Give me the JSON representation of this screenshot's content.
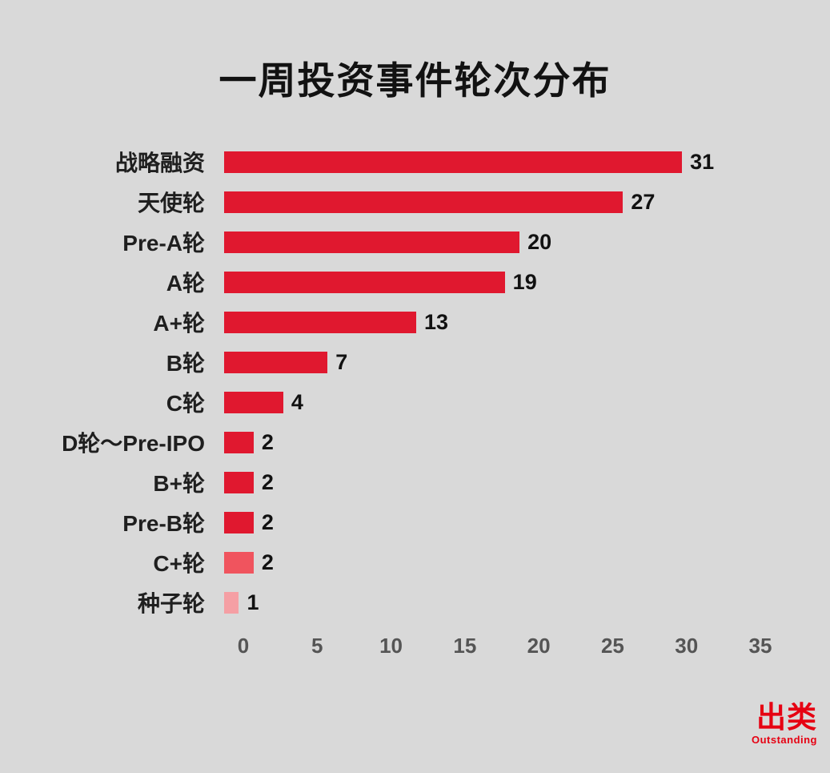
{
  "title": "一周投资事件轮次分布",
  "chart_data": {
    "type": "bar",
    "orientation": "horizontal",
    "title": "一周投资事件轮次分布",
    "categories": [
      "战略融资",
      "天使轮",
      "Pre-A轮",
      "A轮",
      "A+轮",
      "B轮",
      "C轮",
      "D轮～Pre-IPO",
      "B+轮",
      "Pre-B轮",
      "C+轮",
      "种子轮"
    ],
    "values": [
      31,
      27,
      20,
      19,
      13,
      7,
      4,
      2,
      2,
      2,
      2,
      1
    ],
    "bar_colors": [
      "#e0182f",
      "#e0182f",
      "#e0182f",
      "#e0182f",
      "#e0182f",
      "#e0182f",
      "#e0182f",
      "#e0182f",
      "#e0182f",
      "#e0182f",
      "#f0545e",
      "#f59fa4"
    ],
    "xlabel": "",
    "ylabel": "",
    "xlim": [
      0,
      35
    ],
    "x_ticks": [
      "0",
      "5",
      "10",
      "15",
      "20",
      "25",
      "30",
      "35"
    ],
    "x_tick_values": [
      0,
      5,
      10,
      15,
      20,
      25,
      30,
      35
    ],
    "grid": false,
    "legend": "none",
    "background_color": "#d9d9d9"
  },
  "logo": {
    "text": "出类",
    "subtext": "Outstanding",
    "color": "#e60012"
  }
}
